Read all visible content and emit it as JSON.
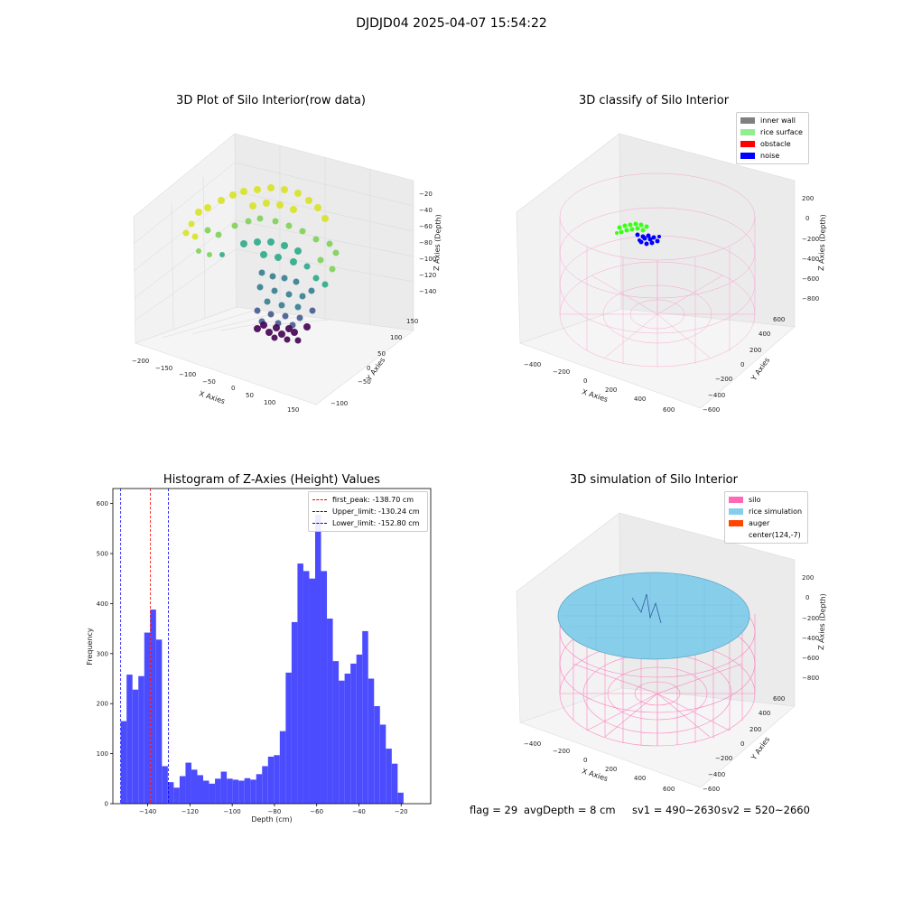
{
  "suptitle": "DJDJD04 2025-04-07 15:54:22",
  "footer": {
    "flag": "flag = 29",
    "avg_depth": "avgDepth = 8 cm",
    "sv1": "sv1 = 490~2630",
    "sv2": "sv2 = 520~2660"
  },
  "panels": {
    "raw": {
      "title": "3D Plot of Silo Interior(row data)",
      "xlabel": "X Axies",
      "ylabel": "Y Axies",
      "zlabel": "Z Axies (Depth)",
      "xticks": [
        "−200",
        "−150",
        "−100",
        "−50",
        "0",
        "50",
        "100",
        "150"
      ],
      "yticks": [
        "−100",
        "−50",
        "0",
        "50",
        "100",
        "150"
      ],
      "zticks": [
        "−20",
        "−40",
        "−60",
        "−80",
        "−100",
        "−120",
        "−140"
      ]
    },
    "classify": {
      "title": "3D classify of Silo Interior",
      "xlabel": "X Axies",
      "ylabel": "Y Axies",
      "zlabel": "Z Axies (Depth)",
      "xticks": [
        "−400",
        "−200",
        "0",
        "200",
        "400",
        "600"
      ],
      "yticks": [
        "−600",
        "−400",
        "−200",
        "0",
        "200",
        "400",
        "600"
      ],
      "zticks": [
        "200",
        "0",
        "−200",
        "−400",
        "−600",
        "−800"
      ],
      "legend": [
        {
          "label": "inner wall",
          "color": "#808080"
        },
        {
          "label": "rice surface",
          "color": "#90ee90"
        },
        {
          "label": "obstacle",
          "color": "#ff0000"
        },
        {
          "label": "noise",
          "color": "#0000ff"
        }
      ]
    },
    "simulation": {
      "title": "3D simulation of Silo Interior",
      "xlabel": "X Axies",
      "ylabel": "Y Axies",
      "zlabel": "Z Axies (Depth)",
      "xticks": [
        "−400",
        "−200",
        "0",
        "200",
        "400",
        "600"
      ],
      "yticks": [
        "−600",
        "−400",
        "−200",
        "0",
        "200",
        "400",
        "600"
      ],
      "zticks": [
        "200",
        "0",
        "−200",
        "−400",
        "−600",
        "−800"
      ],
      "legend": [
        {
          "label": "silo",
          "color": "#ff69b4"
        },
        {
          "label": "rice simulation",
          "color": "#87ceeb"
        },
        {
          "label": "auger",
          "color": "#ff4500"
        },
        {
          "label": "center(124,-7)",
          "color": ""
        }
      ]
    }
  },
  "chart_data": {
    "type": "bar",
    "title": "Histogram of Z-Axies (Height) Values",
    "xlabel": "Depth (cm)",
    "ylabel": "Frequency",
    "bar_color": "#4c4cff",
    "xlim": [
      -156.5,
      -6
    ],
    "ylim": [
      0,
      630
    ],
    "xticks": [
      -140,
      -120,
      -100,
      -80,
      -60,
      -40,
      -20
    ],
    "xtick_labels": [
      "−140",
      "−120",
      "−100",
      "−80",
      "−60",
      "−40",
      "−20"
    ],
    "yticks": [
      0,
      100,
      200,
      300,
      400,
      500,
      600
    ],
    "bin_start": -152.8,
    "bin_width": 2.79,
    "values": [
      165,
      258,
      228,
      255,
      342,
      388,
      328,
      75,
      43,
      32,
      55,
      82,
      68,
      57,
      46,
      40,
      50,
      64,
      50,
      48,
      46,
      51,
      48,
      59,
      75,
      94,
      97,
      145,
      262,
      363,
      480,
      465,
      450,
      578,
      465,
      370,
      285,
      246,
      260,
      280,
      298,
      345,
      250,
      195,
      158,
      110,
      80,
      22
    ],
    "vlines": [
      {
        "label": "first_peak: -138.70 cm",
        "x": -138.7,
        "color": "#ff0000"
      },
      {
        "label": "Upper_limit: -130.24 cm",
        "x": -130.24,
        "color": "#0000ff"
      },
      {
        "label": "Lower_limit: -152.80 cm",
        "x": -152.8,
        "color": "#0000ff"
      }
    ]
  }
}
